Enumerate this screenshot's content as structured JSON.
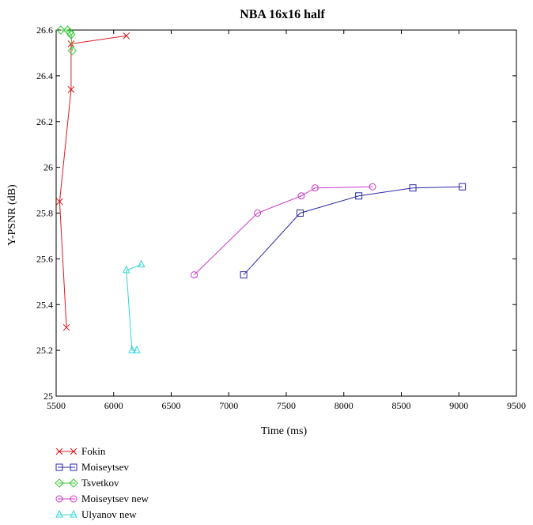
{
  "chart_data": {
    "type": "line",
    "title": "NBA 16x16 half",
    "xlabel": "Time (ms)",
    "ylabel": "Y-PSNR (dB)",
    "xlim": [
      5500,
      9500
    ],
    "ylim": [
      25,
      26.6
    ],
    "xticks": [
      5500,
      6000,
      6500,
      7000,
      7500,
      8000,
      8500,
      9000,
      9500
    ],
    "xtick_labels": [
      "5500",
      "6000",
      "6500",
      "7000",
      "7500",
      "8000",
      "8500",
      "9000",
      "9500"
    ],
    "yticks": [
      25,
      25.2,
      25.4,
      25.6,
      25.8,
      26,
      26.2,
      26.4,
      26.6
    ],
    "ytick_labels": [
      "25",
      "25.2",
      "25.4",
      "25.6",
      "25.8",
      "26",
      "26.2",
      "26.4",
      "26.6"
    ],
    "grid": false,
    "legend_placement": "below",
    "series": [
      {
        "name": "Fokin",
        "color": "#e0191d",
        "marker": "x",
        "x": [
          6110,
          5630,
          5630,
          5530,
          5590
        ],
        "y": [
          26.575,
          26.54,
          26.34,
          25.85,
          25.3
        ]
      },
      {
        "name": "Moiseytsev",
        "color": "#2a2aa8",
        "marker": "square",
        "x": [
          7130,
          7620,
          8130,
          8600,
          9030
        ],
        "y": [
          25.53,
          25.8,
          25.875,
          25.91,
          25.915
        ]
      },
      {
        "name": "Tsvetkov",
        "color": "#33cc33",
        "marker": "diamond",
        "x": [
          5540,
          5600,
          5620,
          5630,
          5640
        ],
        "y": [
          26.6,
          26.6,
          26.59,
          26.58,
          26.51
        ]
      },
      {
        "name": "Moiseytsev new",
        "color": "#cc33cc",
        "marker": "circle",
        "x": [
          6700,
          7250,
          7630,
          7750,
          8250
        ],
        "y": [
          25.53,
          25.8,
          25.875,
          25.91,
          25.915
        ]
      },
      {
        "name": "Ulyanov new",
        "color": "#33d6d6",
        "marker": "triangle",
        "x": [
          6240,
          6110,
          6160,
          6200
        ],
        "y": [
          25.575,
          25.55,
          25.2,
          25.2
        ]
      }
    ]
  }
}
